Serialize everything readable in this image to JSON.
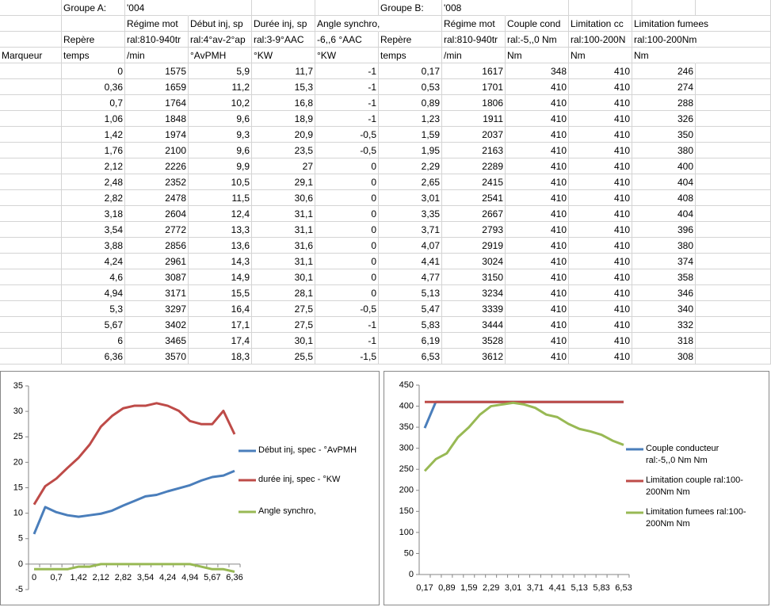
{
  "sheet": {
    "header_rows": [
      [
        null,
        "Groupe A:",
        "'004",
        null,
        null,
        null,
        "Groupe B:",
        "'008",
        null,
        null,
        null
      ],
      [
        null,
        null,
        "Régime mot",
        "Début inj, sp",
        "Durée inj, sp",
        "Angle synchro,",
        null,
        "Régime mot",
        "Couple cond",
        "Limitation cc",
        "Limitation fumees"
      ],
      [
        null,
        "Repère",
        "ral:810-940tr",
        "ral:4°av-2°ap",
        "ral:3-9°AAC",
        "-6,,6 °AAC",
        "Repère",
        "ral:810-940tr",
        "ral:-5,,0 Nm",
        "ral:100-200N",
        "ral:100-200Nm"
      ],
      [
        "Marqueur",
        "temps",
        "/min",
        "°AvPMH",
        "°KW",
        "°KW",
        "temps",
        "/min",
        "Nm",
        "Nm",
        "Nm"
      ]
    ],
    "rows": [
      [
        "0",
        "1575",
        "5,9",
        "11,7",
        "-1",
        "0,17",
        "1617",
        "348",
        "410",
        "246"
      ],
      [
        "0,36",
        "1659",
        "11,2",
        "15,3",
        "-1",
        "0,53",
        "1701",
        "410",
        "410",
        "274"
      ],
      [
        "0,7",
        "1764",
        "10,2",
        "16,8",
        "-1",
        "0,89",
        "1806",
        "410",
        "410",
        "288"
      ],
      [
        "1,06",
        "1848",
        "9,6",
        "18,9",
        "-1",
        "1,23",
        "1911",
        "410",
        "410",
        "326"
      ],
      [
        "1,42",
        "1974",
        "9,3",
        "20,9",
        "-0,5",
        "1,59",
        "2037",
        "410",
        "410",
        "350"
      ],
      [
        "1,76",
        "2100",
        "9,6",
        "23,5",
        "-0,5",
        "1,95",
        "2163",
        "410",
        "410",
        "380"
      ],
      [
        "2,12",
        "2226",
        "9,9",
        "27",
        "0",
        "2,29",
        "2289",
        "410",
        "410",
        "400"
      ],
      [
        "2,48",
        "2352",
        "10,5",
        "29,1",
        "0",
        "2,65",
        "2415",
        "410",
        "410",
        "404"
      ],
      [
        "2,82",
        "2478",
        "11,5",
        "30,6",
        "0",
        "3,01",
        "2541",
        "410",
        "410",
        "408"
      ],
      [
        "3,18",
        "2604",
        "12,4",
        "31,1",
        "0",
        "3,35",
        "2667",
        "410",
        "410",
        "404"
      ],
      [
        "3,54",
        "2772",
        "13,3",
        "31,1",
        "0",
        "3,71",
        "2793",
        "410",
        "410",
        "396"
      ],
      [
        "3,88",
        "2856",
        "13,6",
        "31,6",
        "0",
        "4,07",
        "2919",
        "410",
        "410",
        "380"
      ],
      [
        "4,24",
        "2961",
        "14,3",
        "31,1",
        "0",
        "4,41",
        "3024",
        "410",
        "410",
        "374"
      ],
      [
        "4,6",
        "3087",
        "14,9",
        "30,1",
        "0",
        "4,77",
        "3150",
        "410",
        "410",
        "358"
      ],
      [
        "4,94",
        "3171",
        "15,5",
        "28,1",
        "0",
        "5,13",
        "3234",
        "410",
        "410",
        "346"
      ],
      [
        "5,3",
        "3297",
        "16,4",
        "27,5",
        "-0,5",
        "5,47",
        "3339",
        "410",
        "410",
        "340"
      ],
      [
        "5,67",
        "3402",
        "17,1",
        "27,5",
        "-1",
        "5,83",
        "3444",
        "410",
        "410",
        "332"
      ],
      [
        "6",
        "3465",
        "17,4",
        "30,1",
        "-1",
        "6,19",
        "3528",
        "410",
        "410",
        "318"
      ],
      [
        "6,36",
        "3570",
        "18,3",
        "25,5",
        "-1,5",
        "6,53",
        "3612",
        "410",
        "410",
        "308"
      ]
    ]
  },
  "chart_data": [
    {
      "type": "line",
      "categories": [
        "0",
        null,
        "0,7",
        null,
        "1,42",
        null,
        "2,12",
        null,
        "2,82",
        null,
        "3,54",
        null,
        "4,24",
        null,
        "4,94",
        null,
        "5,67",
        null,
        "6,36"
      ],
      "series": [
        {
          "name": "Début inj, spec - °AvPMH",
          "color": "#4a7ebb",
          "values": [
            5.9,
            11.2,
            10.2,
            9.6,
            9.3,
            9.6,
            9.9,
            10.5,
            11.5,
            12.4,
            13.3,
            13.6,
            14.3,
            14.9,
            15.5,
            16.4,
            17.1,
            17.4,
            18.3
          ]
        },
        {
          "name": "durée inj, spec - °KW",
          "color": "#be4b48",
          "values": [
            11.7,
            15.3,
            16.8,
            18.9,
            20.9,
            23.5,
            27,
            29.1,
            30.6,
            31.1,
            31.1,
            31.6,
            31.1,
            30.1,
            28.1,
            27.5,
            27.5,
            30.1,
            25.5
          ]
        },
        {
          "name": "Angle synchro,",
          "color": "#98b954",
          "values": [
            -1,
            -1,
            -1,
            -1,
            -0.5,
            -0.5,
            0,
            0,
            0,
            0,
            0,
            0,
            0,
            0,
            0,
            -0.5,
            -1,
            -1,
            -1.5
          ]
        }
      ],
      "ylim": [
        -5,
        35
      ],
      "yticks": [
        -5,
        0,
        5,
        10,
        15,
        20,
        25,
        30,
        35
      ],
      "legend": "right"
    },
    {
      "type": "line",
      "categories": [
        "0,17",
        null,
        "0,89",
        null,
        "1,59",
        null,
        "2,29",
        null,
        "3,01",
        null,
        "3,71",
        null,
        "4,41",
        null,
        "5,13",
        null,
        "5,83",
        null,
        "6,53"
      ],
      "series": [
        {
          "name": "Couple conducteur ral:-5,,0 Nm  Nm",
          "color": "#4a7ebb",
          "values": [
            348,
            410,
            410,
            410,
            410,
            410,
            410,
            410,
            410,
            410,
            410,
            410,
            410,
            410,
            410,
            410,
            410,
            410,
            410
          ]
        },
        {
          "name": "Limitation couple ral:100-200Nm  Nm",
          "color": "#be4b48",
          "values": [
            410,
            410,
            410,
            410,
            410,
            410,
            410,
            410,
            410,
            410,
            410,
            410,
            410,
            410,
            410,
            410,
            410,
            410,
            410
          ]
        },
        {
          "name": "Limitation fumees ral:100-200Nm  Nm",
          "color": "#98b954",
          "values": [
            246,
            274,
            288,
            326,
            350,
            380,
            400,
            404,
            408,
            404,
            396,
            380,
            374,
            358,
            346,
            340,
            332,
            318,
            308
          ]
        }
      ],
      "ylim": [
        0,
        450
      ],
      "yticks": [
        0,
        50,
        100,
        150,
        200,
        250,
        300,
        350,
        400,
        450
      ],
      "legend": "right"
    }
  ]
}
